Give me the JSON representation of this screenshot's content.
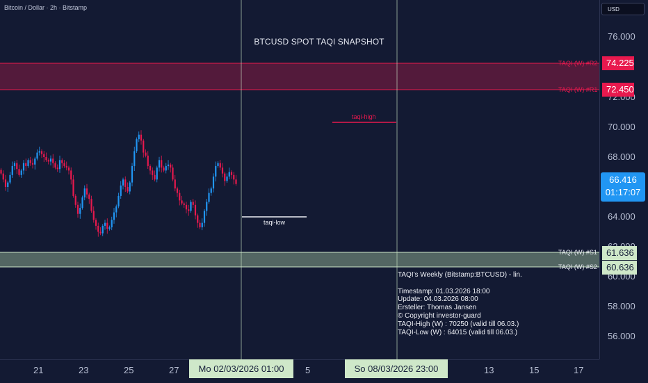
{
  "symbol_line": "Bitcoin / Dollar · 2h · Bitstamp",
  "title": "BTCUSD SPOT TAQI SNAPSHOT",
  "currency": "USD",
  "price_ticks": [
    "76.000",
    "72.000",
    "70.000",
    "68.000",
    "64.000",
    "62.000",
    "60.000",
    "58.000",
    "56.000"
  ],
  "time_ticks": [
    "21",
    "23",
    "25",
    "27",
    "5",
    "13",
    "15",
    "17"
  ],
  "cursor_times": [
    "Mo 02/03/2026   01:00",
    "So 08/03/2026   23:00"
  ],
  "levels": {
    "r2": {
      "label": "TAQI (W) #R2",
      "value": "74.225"
    },
    "r1": {
      "label": "TAQI (W) #R1",
      "value": "72.450"
    },
    "s1": {
      "label": "TAQI (W) #S1",
      "value": "61.636"
    },
    "s2": {
      "label": "TAQI (W) #S2",
      "value": "60.636"
    }
  },
  "last_price": "66.416",
  "countdown": "01:17:07",
  "taqi_high_label": "taqi-high",
  "taqi_low_label": "taqi-low",
  "info_text": "TAQI's Weekly (Bitstamp:BTCUSD) - lin.\n\nTimestamp: 01.03.2026 18:00\nUpdate: 04.03.2026 08:00\nErsteller: Thomas Jansen\n© Copyright investor-guard\nTAQI-High (W) : 70250 (valid till 06.03.)\nTAQI-Low (W) : 64015 (valid till 06.03.)",
  "colors": {
    "background": "#131a33",
    "up": "#2196f3",
    "down": "#e8194e",
    "resistance": "#e8194e",
    "support": "#cfe8c9"
  },
  "chart_data": {
    "type": "candlestick",
    "ylim": [
      55000,
      78000
    ],
    "closes": [
      66900,
      66500,
      66000,
      66300,
      66800,
      67400,
      67600,
      67200,
      66800,
      67100,
      67600,
      67400,
      67800,
      67600,
      67500,
      67900,
      68300,
      68400,
      68200,
      68000,
      67800,
      67700,
      67900,
      67600,
      67300,
      67200,
      67800,
      67600,
      67400,
      67300,
      67100,
      66500,
      65400,
      64800,
      64200,
      64600,
      65300,
      65900,
      65500,
      65200,
      64400,
      63800,
      63400,
      63000,
      62900,
      63400,
      63600,
      63200,
      63300,
      63800,
      64300,
      64700,
      65400,
      66100,
      66500,
      66000,
      65700,
      66300,
      67400,
      68400,
      69200,
      69500,
      69100,
      68300,
      68100,
      67400,
      67100,
      66800,
      66500,
      67300,
      67800,
      67300,
      67100,
      67400,
      67500,
      67300,
      66500,
      65900,
      65600,
      65100,
      64900,
      64800,
      64500,
      64400,
      65000,
      64800,
      64100,
      63600,
      63300,
      63600,
      64400,
      65000,
      65600,
      65900,
      66700,
      67400,
      67600,
      67300,
      66900,
      66400,
      66700,
      67000,
      66800,
      66500,
      66200
    ]
  }
}
